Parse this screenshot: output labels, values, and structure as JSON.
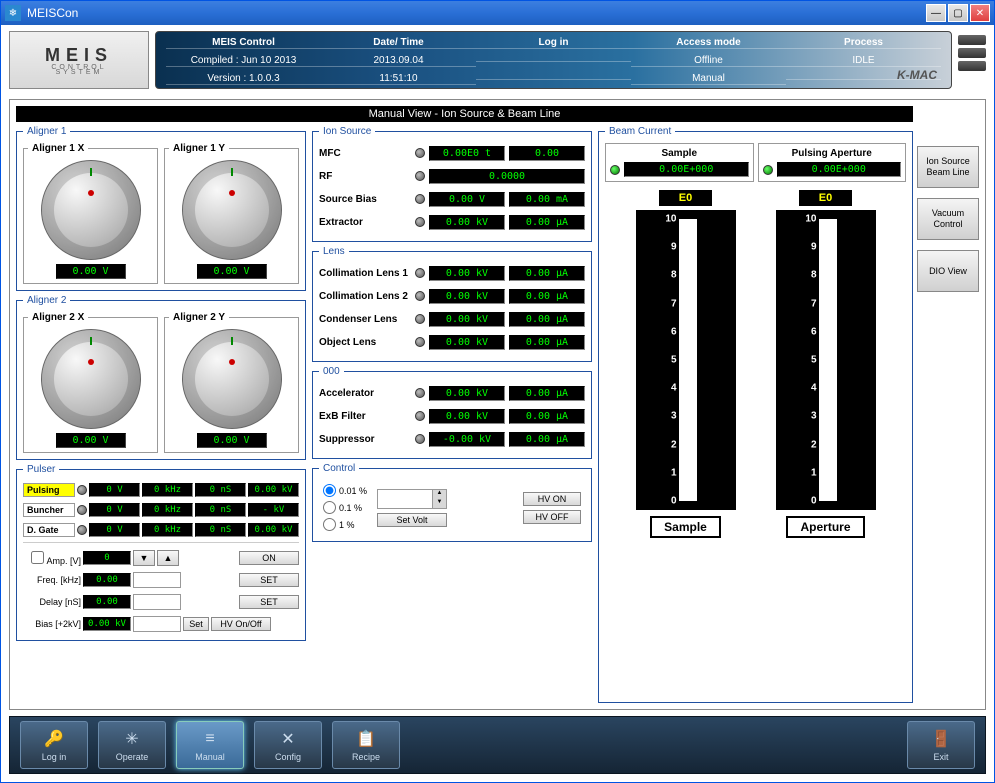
{
  "window": {
    "title": "MEISCon"
  },
  "header": {
    "logo": {
      "name": "MEIS",
      "sub1": "CONTROL",
      "sub2": "SYSTEM"
    },
    "cols": [
      "MEIS Control",
      "Date/ Time",
      "Log in",
      "Access mode",
      "Process"
    ],
    "row1": [
      "Compiled : Jun 10 2013",
      "2013.09.04",
      "",
      "Offline",
      "IDLE"
    ],
    "row2": [
      "Version : 1.0.0.3",
      "11:51:10",
      "",
      "Manual",
      ""
    ],
    "brand": "K-MAC"
  },
  "viewTitle": "Manual View - Ion Source & Beam Line",
  "aligner1": {
    "legend": "Aligner 1",
    "x": {
      "title": "Aligner 1 X",
      "value": "0.00 V"
    },
    "y": {
      "title": "Aligner 1 Y",
      "value": "0.00 V"
    }
  },
  "aligner2": {
    "legend": "Aligner 2",
    "x": {
      "title": "Aligner 2 X",
      "value": "0.00 V"
    },
    "y": {
      "title": "Aligner 2 Y",
      "value": "0.00 V"
    }
  },
  "pulser": {
    "legend": "Pulser",
    "rows": [
      {
        "label": "Pulsing",
        "active": true,
        "dot": true,
        "v": [
          "0 V",
          "0 kHz",
          "0 nS",
          "0.00 kV"
        ]
      },
      {
        "label": "Buncher",
        "active": false,
        "dot": true,
        "v": [
          "0 V",
          "0 kHz",
          "0 nS",
          "- kV"
        ]
      },
      {
        "label": "D. Gate",
        "active": false,
        "dot": true,
        "v": [
          "0 V",
          "0 kHz",
          "0 nS",
          "0.00 kV"
        ]
      }
    ],
    "amp": {
      "label": "Amp. [V]",
      "val": "0",
      "btn_on": "ON"
    },
    "freq": {
      "label": "Freq. [kHz]",
      "val": "0.00",
      "btn": "SET"
    },
    "delay": {
      "label": "Delay [nS]",
      "val": "0.00",
      "btn": "SET"
    },
    "bias": {
      "label": "Bias [+2kV]",
      "val": "0.00 kV",
      "btn1": "Set",
      "btn2": "HV On/Off"
    },
    "cb": "☐"
  },
  "ionSource": {
    "legend": "Ion Source",
    "items": [
      {
        "label": "MFC",
        "v1": "0.00E0 t",
        "v2": "0.00"
      },
      {
        "label": "RF",
        "v1": "0.0000",
        "v2": null
      },
      {
        "label": "Source Bias",
        "v1": "0.00 V",
        "v2": "0.00 mA"
      },
      {
        "label": "Extractor",
        "v1": "0.00 kV",
        "v2": "0.00 µA"
      }
    ]
  },
  "lens": {
    "legend": "Lens",
    "items": [
      {
        "label": "Collimation Lens 1",
        "v1": "0.00 kV",
        "v2": "0.00 µA"
      },
      {
        "label": "Collimation Lens 2",
        "v1": "0.00 kV",
        "v2": "0.00 µA"
      },
      {
        "label": "Condenser Lens",
        "v1": "0.00 kV",
        "v2": "0.00 µA"
      },
      {
        "label": "Object Lens",
        "v1": "0.00 kV",
        "v2": "0.00 µA"
      }
    ]
  },
  "group000": {
    "legend": "000",
    "items": [
      {
        "label": "Accelerator",
        "v1": "0.00 kV",
        "v2": "0.00 µA"
      },
      {
        "label": "ExB Filter",
        "v1": "0.00 kV",
        "v2": "0.00 µA"
      },
      {
        "label": "Suppressor",
        "v1": "-0.00 kV",
        "v2": "0.00 µA"
      }
    ]
  },
  "control": {
    "legend": "Control",
    "radios": [
      "0.01 %",
      "0.1 %",
      "1 %"
    ],
    "setvolt": "Set Volt",
    "hvon": "HV ON",
    "hvoff": "HV OFF"
  },
  "beamCurrent": {
    "legend": "Beam Current",
    "sample": {
      "title": "Sample",
      "value": "0.00E+000"
    },
    "aperture": {
      "title": "Pulsing Aperture",
      "value": "0.00E+000"
    },
    "meter1": {
      "title": "E0",
      "label": "Sample"
    },
    "meter2": {
      "title": "E0",
      "label": "Aperture"
    },
    "ticks": [
      "10",
      "9",
      "8",
      "7",
      "6",
      "5",
      "4",
      "3",
      "2",
      "1",
      "0"
    ]
  },
  "rightButtons": [
    "Ion Source\nBeam Line",
    "Vacuum\nControl",
    "DIO View"
  ],
  "nav": {
    "items": [
      {
        "label": "Log in",
        "icon": "🔑"
      },
      {
        "label": "Operate",
        "icon": "✳"
      },
      {
        "label": "Manual",
        "icon": "≡",
        "active": true
      },
      {
        "label": "Config",
        "icon": "✕"
      },
      {
        "label": "Recipe",
        "icon": "📋"
      }
    ],
    "exit": {
      "label": "Exit",
      "icon": "🚪"
    }
  },
  "colors": {
    "led_green": "#00ff00",
    "led_bg": "#000000",
    "fieldset_border": "#2050a0",
    "banner_start": "#0a3050",
    "banner_end": "#c8d0d8"
  }
}
